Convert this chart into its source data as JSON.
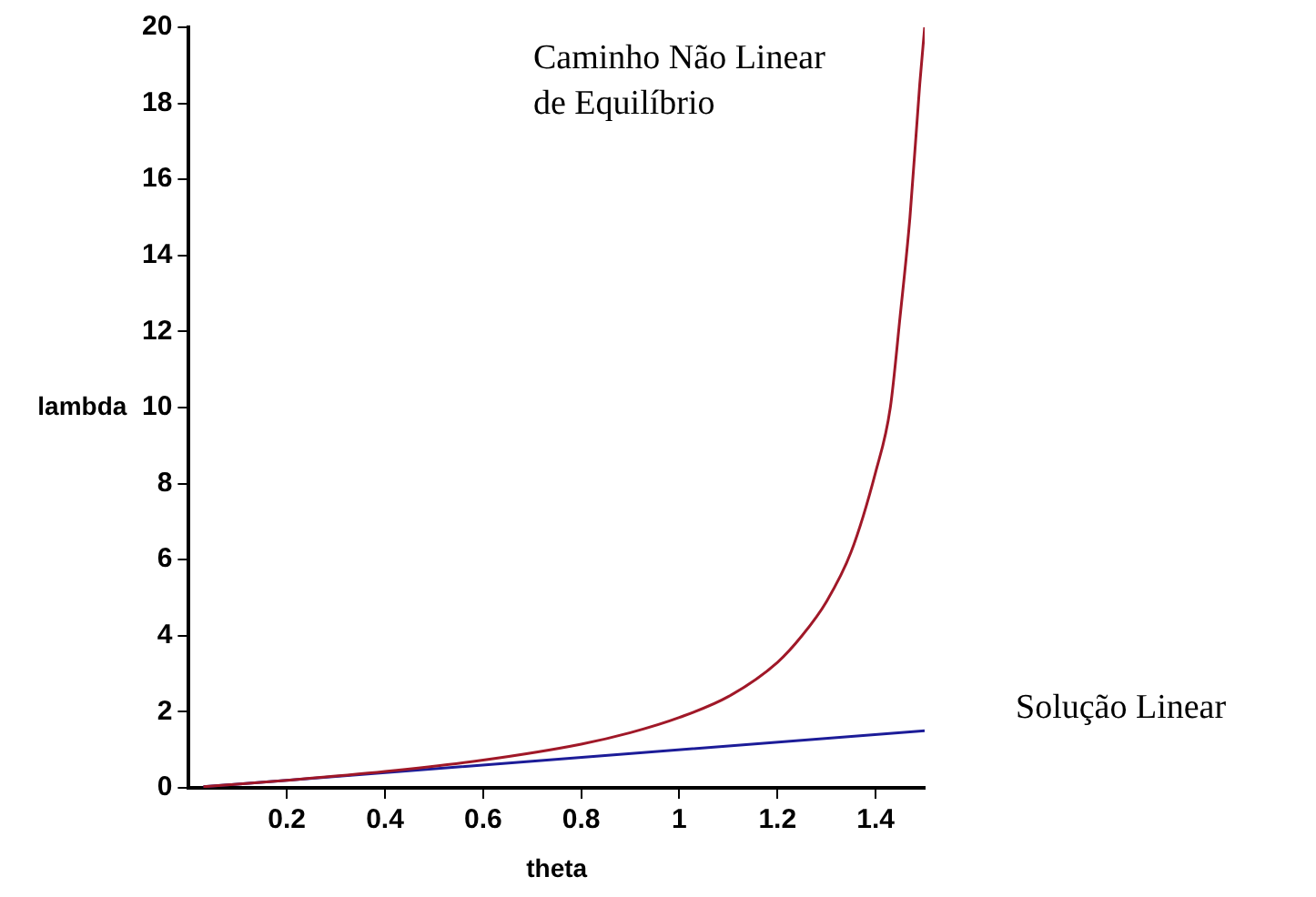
{
  "chart_data": {
    "type": "line",
    "xlabel": "theta",
    "ylabel": "lambda",
    "xlim": [
      0,
      1.5
    ],
    "ylim": [
      0,
      20
    ],
    "xticks": [
      0.2,
      0.4,
      0.6,
      0.8,
      1,
      1.2,
      1.4
    ],
    "yticks": [
      0,
      2,
      4,
      6,
      8,
      10,
      12,
      14,
      16,
      18,
      20
    ],
    "grid": false,
    "legend": false,
    "marker": "none",
    "line_style": "solid",
    "series": [
      {
        "name": "Caminho Não Linear de Equilíbrio",
        "color": "#a01828",
        "x": [
          0.03,
          0.2,
          0.4,
          0.6,
          0.8,
          0.9,
          1.0,
          1.1,
          1.2,
          1.25,
          1.3,
          1.35,
          1.4,
          1.43,
          1.45,
          1.47,
          1.49,
          1.5
        ],
        "values": [
          0.03,
          0.2,
          0.43,
          0.73,
          1.15,
          1.45,
          1.85,
          2.4,
          3.3,
          4,
          4.9,
          6.2,
          8.3,
          10,
          12.4,
          15,
          18.5,
          20
        ]
      },
      {
        "name": "Solução Linear",
        "color": "#1c1c98",
        "x": [
          0.03,
          1.5
        ],
        "values": [
          0.03,
          1.5
        ]
      }
    ]
  }
}
